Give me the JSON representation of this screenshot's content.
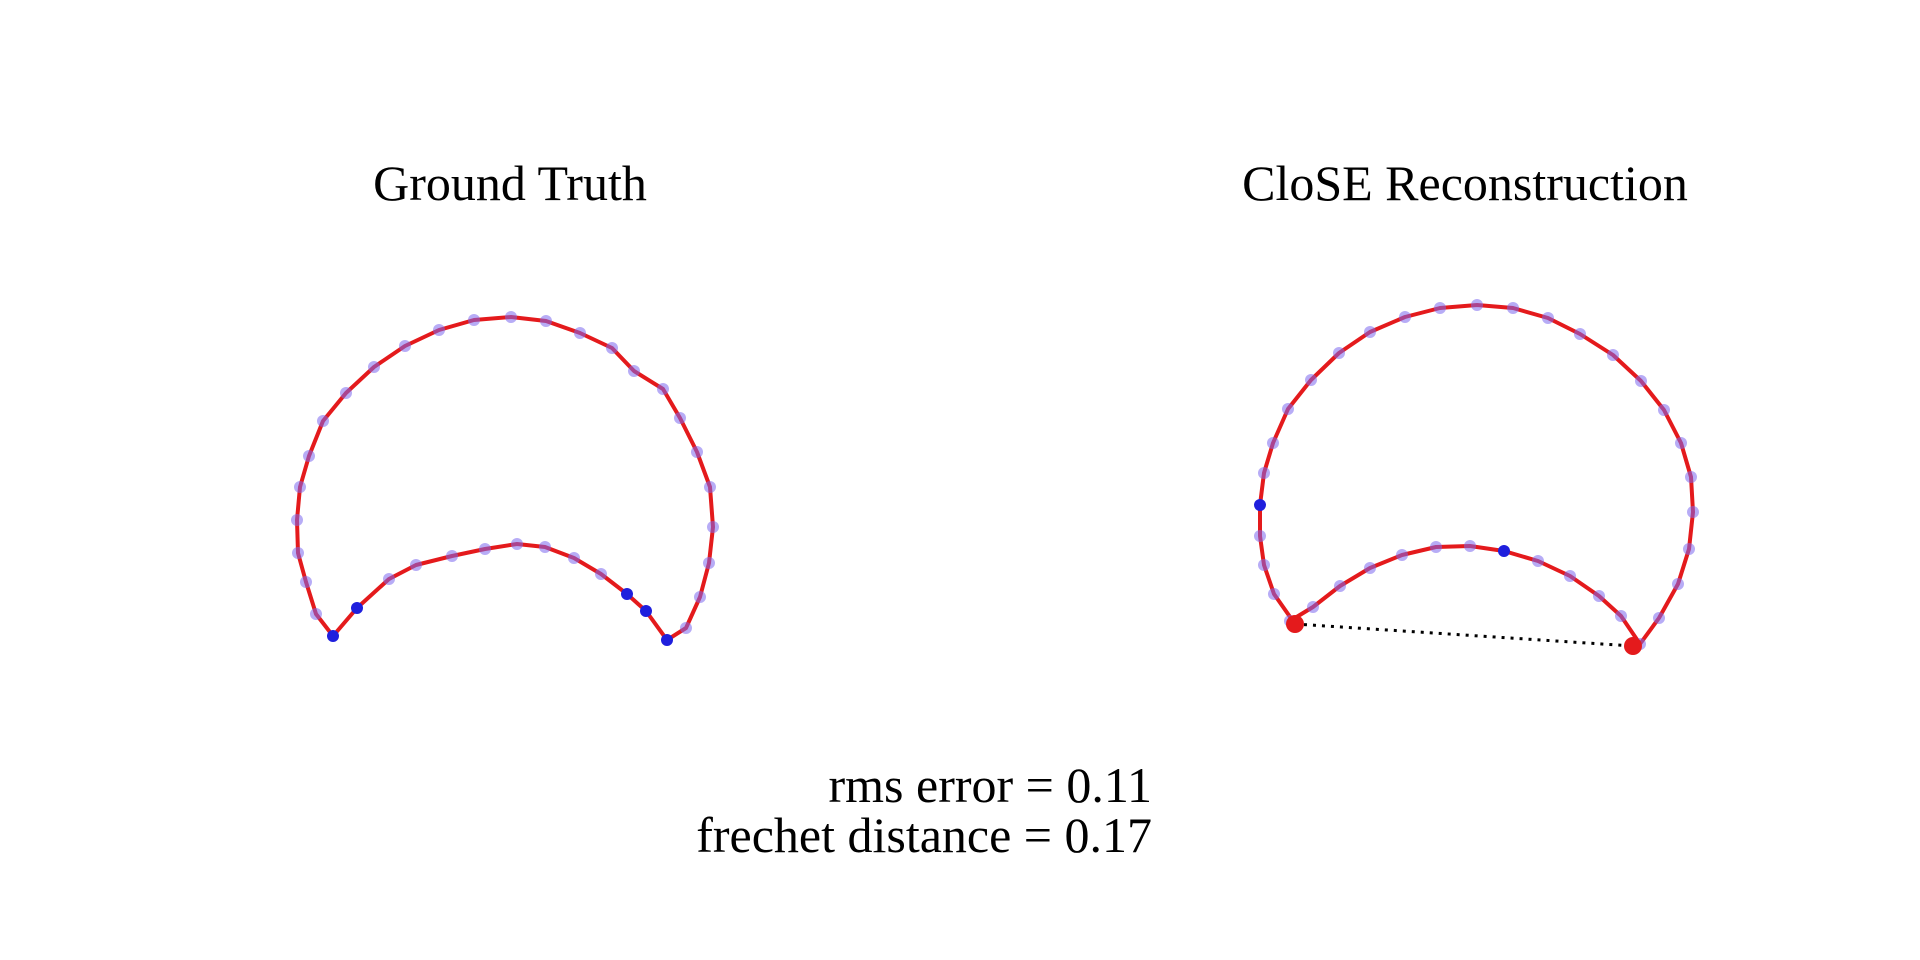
{
  "panels": [
    {
      "title": "Ground Truth",
      "outline_color": "#e41a1c",
      "point_color": "#7b68ee",
      "highlight_color": "#1f1fdd"
    },
    {
      "title": "CloSE Reconstruction",
      "outline_color": "#e41a1c",
      "point_color": "#7b68ee",
      "highlight_color": "#1f1fdd",
      "endpoint_color": "#e41a1c"
    }
  ],
  "metrics": {
    "rms_line": "rms error = 0.11",
    "frechet_line": "frechet distance = 0.17"
  }
}
